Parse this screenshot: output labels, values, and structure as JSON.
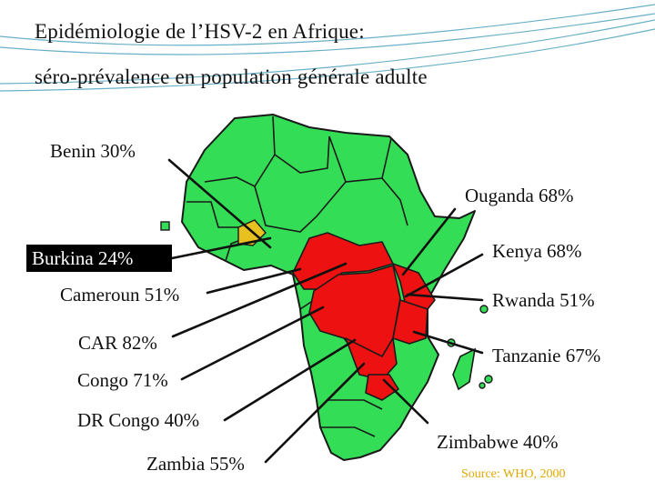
{
  "title": {
    "line1": "Epidémiologie de l’HSV-2 en Afrique:",
    "line2": "séro-prévalence en population générale adulte"
  },
  "labels": {
    "benin": "Benin 30%",
    "ouganda": "Ouganda 68%",
    "burkina": "Burkina 24%",
    "kenya": "Kenya 68%",
    "cameroun": "Cameroun 51%",
    "rwanda": "Rwanda 51%",
    "car": "CAR 82%",
    "tanzanie": "Tanzanie 67%",
    "congo": "Congo 71%",
    "drcongo": "DR Congo 40%",
    "zimbabwe": "Zimbabwe 40%",
    "zambia": "Zambia 55%"
  },
  "source": "Source: WHO, 2000",
  "colors": {
    "land": "#33dd55",
    "highlight_red": "#ee1111",
    "highlight_yellow": "#e8c020",
    "border": "#1a1a1a",
    "source_text": "#e0a800",
    "decor_line": "#2a8fb0"
  }
}
